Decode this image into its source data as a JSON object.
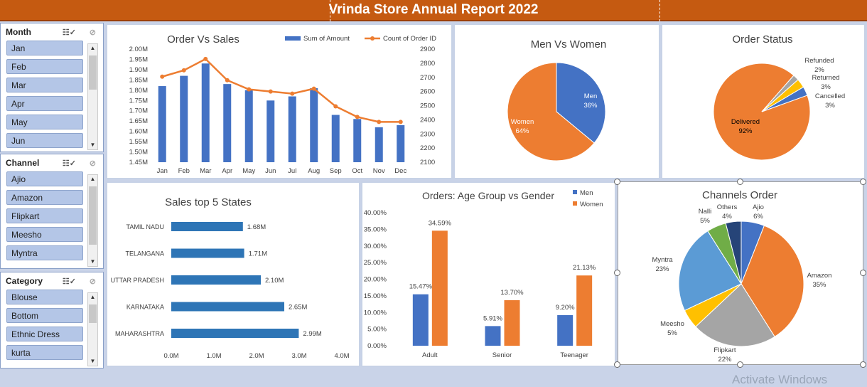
{
  "banner": {
    "title": "Vrinda Store Annual Report 2022"
  },
  "slicers": {
    "month": {
      "label": "Month",
      "items": [
        "Jan",
        "Feb",
        "Mar",
        "Apr",
        "May",
        "Jun"
      ]
    },
    "channel": {
      "label": "Channel",
      "items": [
        "Ajio",
        "Amazon",
        "Flipkart",
        "Meesho",
        "Myntra"
      ]
    },
    "category": {
      "label": "Category",
      "items": [
        "Blouse",
        "Bottom",
        "Ethnic Dress",
        "kurta"
      ]
    }
  },
  "charts": {
    "order_vs_sales": {
      "title": "Order Vs Sales"
    },
    "men_vs_women": {
      "title": "Men Vs Women"
    },
    "order_status": {
      "title": "Order Status"
    },
    "sales_top_states": {
      "title": "Sales top 5 States"
    },
    "age_group": {
      "title": "Orders: Age Group vs Gender"
    },
    "channels_order": {
      "title": "Channels Order"
    }
  },
  "chart_data": [
    {
      "type": "bar",
      "title": "Order Vs Sales",
      "categories": [
        "Jan",
        "Feb",
        "Mar",
        "Apr",
        "May",
        "Jun",
        "Jul",
        "Aug",
        "Sep",
        "Oct",
        "Nov",
        "Dec"
      ],
      "series": [
        {
          "name": "Sum of Amount",
          "type": "bar",
          "axis": "left",
          "values": [
            1.82,
            1.87,
            1.93,
            1.83,
            1.8,
            1.75,
            1.77,
            1.81,
            1.68,
            1.66,
            1.62,
            1.63
          ],
          "color": "#4472c4"
        },
        {
          "name": "Count of Order ID",
          "type": "line",
          "axis": "right",
          "values": [
            2705,
            2750,
            2830,
            2680,
            2615,
            2600,
            2585,
            2620,
            2495,
            2420,
            2385,
            2385
          ],
          "color": "#ed7d31"
        }
      ],
      "y_left_ticks": [
        "2.00M",
        "1.95M",
        "1.90M",
        "1.85M",
        "1.80M",
        "1.75M",
        "1.70M",
        "1.65M",
        "1.60M",
        "1.55M",
        "1.50M",
        "1.45M"
      ],
      "y_right_ticks": [
        "2900",
        "2800",
        "2700",
        "2600",
        "2500",
        "2400",
        "2300",
        "2200",
        "2100"
      ],
      "ylim_left": [
        1.45,
        2.0
      ],
      "ylim_right": [
        2100,
        2900
      ],
      "legend": "top-right"
    },
    {
      "type": "pie",
      "title": "Men Vs Women",
      "slices": [
        {
          "label": "Men",
          "pct_label": "36%",
          "value": 36,
          "color": "#4472c4"
        },
        {
          "label": "Women",
          "pct_label": "64%",
          "value": 64,
          "color": "#ed7d31"
        }
      ]
    },
    {
      "type": "pie",
      "title": "Order Status",
      "slices": [
        {
          "label": "Cancelled",
          "pct_label": "3%",
          "value": 3,
          "color": "#4472c4"
        },
        {
          "label": "Delivered",
          "pct_label": "92%",
          "value": 92,
          "color": "#ed7d31"
        },
        {
          "label": "Refunded",
          "pct_label": "2%",
          "value": 2,
          "color": "#a5a5a5"
        },
        {
          "label": "Returned",
          "pct_label": "3%",
          "value": 3,
          "color": "#ffc000"
        }
      ]
    },
    {
      "type": "bar",
      "orientation": "horizontal",
      "title": "Sales top 5 States",
      "categories": [
        "TAMIL NADU",
        "TELANGANA",
        "UTTAR PRADESH",
        "KARNATAKA",
        "MAHARASHTRA"
      ],
      "values": [
        1.68,
        1.71,
        2.1,
        2.65,
        2.99
      ],
      "value_labels": [
        "1.68M",
        "1.71M",
        "2.10M",
        "2.65M",
        "2.99M"
      ],
      "x_ticks": [
        "0.0M",
        "1.0M",
        "2.0M",
        "3.0M",
        "4.0M"
      ],
      "xlim": [
        0,
        4
      ]
    },
    {
      "type": "bar",
      "title": "Orders: Age Group vs Gender",
      "categories": [
        "Adult",
        "Senior",
        "Teenager"
      ],
      "series": [
        {
          "name": "Men",
          "values": [
            15.47,
            5.91,
            9.2
          ],
          "labels": [
            "15.47%",
            "5.91%",
            "9.20%"
          ],
          "color": "#4472c4"
        },
        {
          "name": "Women",
          "values": [
            34.59,
            13.7,
            21.13
          ],
          "labels": [
            "34.59%",
            "13.70%",
            "21.13%"
          ],
          "color": "#ed7d31"
        }
      ],
      "y_ticks": [
        "40.00%",
        "35.00%",
        "30.00%",
        "25.00%",
        "20.00%",
        "15.00%",
        "10.00%",
        "5.00%",
        "0.00%"
      ],
      "ylim": [
        0,
        40
      ],
      "legend": "top-right"
    },
    {
      "type": "pie",
      "title": "Channels Order",
      "slices": [
        {
          "label": "Ajio",
          "pct_label": "6%",
          "value": 6,
          "color": "#4472c4"
        },
        {
          "label": "Amazon",
          "pct_label": "35%",
          "value": 35,
          "color": "#ed7d31"
        },
        {
          "label": "Flipkart",
          "pct_label": "22%",
          "value": 22,
          "color": "#a5a5a5"
        },
        {
          "label": "Meesho",
          "pct_label": "5%",
          "value": 5,
          "color": "#ffc000"
        },
        {
          "label": "Myntra",
          "pct_label": "23%",
          "value": 23,
          "color": "#5b9bd5"
        },
        {
          "label": "Nalli",
          "pct_label": "5%",
          "value": 5,
          "color": "#70ad47"
        },
        {
          "label": "Others",
          "pct_label": "4%",
          "value": 4,
          "color": "#264478"
        }
      ]
    }
  ],
  "watermark": "Activate Windows"
}
